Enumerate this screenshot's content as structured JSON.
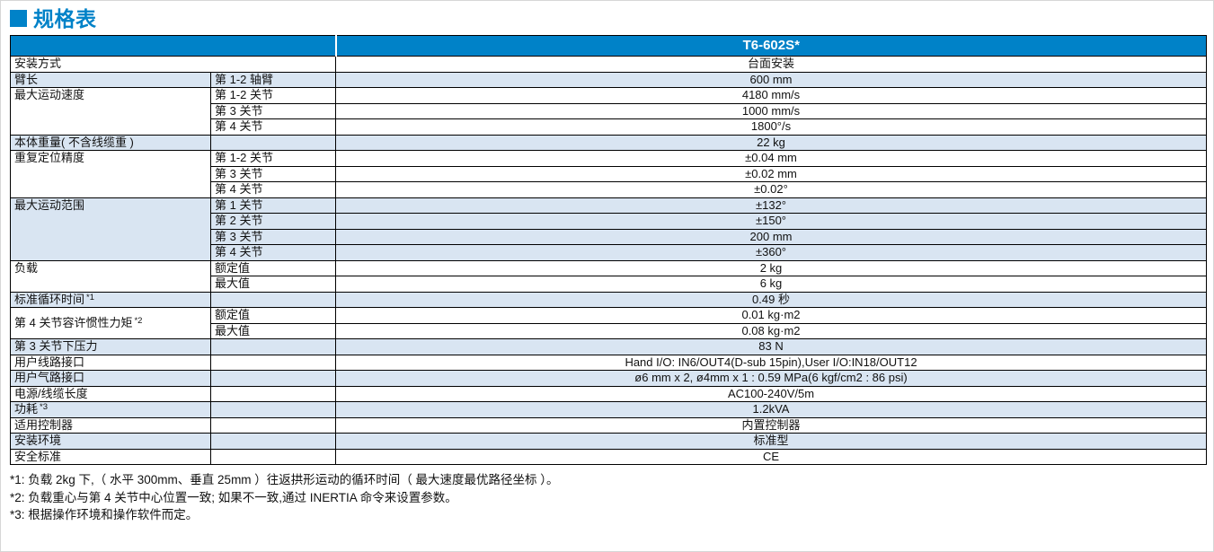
{
  "page": {
    "title": "规格表"
  },
  "colors": {
    "accent": "#0082c8",
    "row_shade": "#d9e5f2",
    "border": "#000000"
  },
  "table": {
    "header": {
      "model": "T6-602S*"
    },
    "groups": [
      {
        "label": "安装方式",
        "note": "",
        "merged": true,
        "shade": false,
        "rows": [
          {
            "sub": "",
            "value": "台面安装"
          }
        ]
      },
      {
        "label": "臂长",
        "note": "",
        "shade": true,
        "rows": [
          {
            "sub": "第 1-2 轴臂",
            "value": "600 mm"
          }
        ]
      },
      {
        "label": "最大运动速度",
        "note": "",
        "shade": false,
        "rows": [
          {
            "sub": "第 1-2 关节",
            "value": "4180 mm/s"
          },
          {
            "sub": "第 3 关节",
            "value": "1000 mm/s"
          },
          {
            "sub": "第 4 关节",
            "value": "1800°/s"
          }
        ]
      },
      {
        "label": "本体重量( 不含线缆重 )",
        "note": "",
        "shade": true,
        "rows": [
          {
            "sub": "",
            "value": "22 kg"
          }
        ]
      },
      {
        "label": "重复定位精度",
        "note": "",
        "shade": false,
        "rows": [
          {
            "sub": "第 1-2 关节",
            "value": "±0.04 mm"
          },
          {
            "sub": "第 3 关节",
            "value": "±0.02 mm"
          },
          {
            "sub": "第 4 关节",
            "value": "±0.02°"
          }
        ]
      },
      {
        "label": "最大运动范围",
        "note": "",
        "shade": true,
        "rows": [
          {
            "sub": "第 1 关节",
            "value": "±132°"
          },
          {
            "sub": "第 2 关节",
            "value": "±150°"
          },
          {
            "sub": "第 3 关节",
            "value": "200 mm"
          },
          {
            "sub": "第 4 关节",
            "value": "±360°"
          }
        ]
      },
      {
        "label": "负载",
        "note": "",
        "shade": false,
        "rows": [
          {
            "sub": "额定值",
            "value": "2 kg"
          },
          {
            "sub": "最大值",
            "value": "6 kg"
          }
        ]
      },
      {
        "label": "标准循环时间",
        "note": "*1",
        "shade": true,
        "rows": [
          {
            "sub": "",
            "value": "0.49 秒"
          }
        ]
      },
      {
        "label": "第 4 关节容许惯性力矩",
        "note": "*2",
        "shade": false,
        "center_label": true,
        "rows": [
          {
            "sub": "额定值",
            "value": "0.01 kg·m2"
          },
          {
            "sub": "最大值",
            "value": "0.08 kg·m2"
          }
        ]
      },
      {
        "label": "第 3 关节下压力",
        "note": "",
        "shade": true,
        "rows": [
          {
            "sub": "",
            "value": "83 N"
          }
        ]
      },
      {
        "label": "用户线路接口",
        "note": "",
        "shade": false,
        "rows": [
          {
            "sub": "",
            "value": "Hand I/O: IN6/OUT4(D-sub 15pin),User I/O:IN18/OUT12"
          }
        ]
      },
      {
        "label": "用户气路接口",
        "note": "",
        "shade": true,
        "rows": [
          {
            "sub": "",
            "value": "ø6 mm x 2, ø4mm x 1 : 0.59 MPa(6 kgf/cm2 : 86 psi)"
          }
        ]
      },
      {
        "label": "电源/线缆长度",
        "note": "",
        "shade": false,
        "rows": [
          {
            "sub": "",
            "value": "AC100-240V/5m"
          }
        ]
      },
      {
        "label": "功耗",
        "note": "*3",
        "shade": true,
        "rows": [
          {
            "sub": "",
            "value": "1.2kVA"
          }
        ]
      },
      {
        "label": "适用控制器",
        "note": "",
        "shade": false,
        "rows": [
          {
            "sub": "",
            "value": "内置控制器"
          }
        ]
      },
      {
        "label": "安装环境",
        "note": "",
        "shade": true,
        "rows": [
          {
            "sub": "",
            "value": "标准型"
          }
        ]
      },
      {
        "label": "安全标准",
        "note": "",
        "shade": false,
        "rows": [
          {
            "sub": "",
            "value": "CE"
          }
        ]
      }
    ]
  },
  "footnotes": [
    "*1: 负载 2kg 下,（ 水平 300mm、垂直 25mm ）往返拱形运动的循环时间（ 最大速度最优路径坐标 ）。",
    "*2: 负载重心与第 4 关节中心位置一致; 如果不一致,通过 INERTIA 命令来设置参数。",
    "*3: 根据操作环境和操作软件而定。"
  ]
}
